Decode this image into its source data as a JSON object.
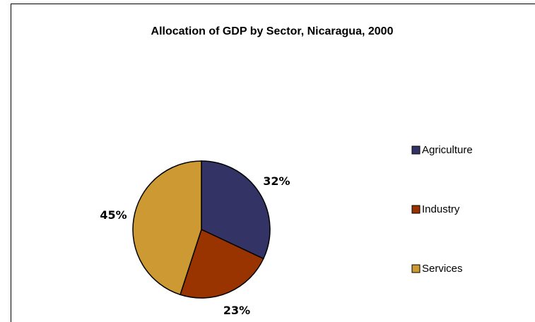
{
  "chart_data": {
    "type": "pie",
    "title": "Allocation of GDP by Sector, Nicaragua, 2000",
    "categories": [
      "Agriculture",
      "Industry",
      "Services"
    ],
    "values": [
      32,
      23,
      45
    ],
    "value_labels": [
      "32%",
      "23%",
      "45%"
    ],
    "colors": [
      "#333366",
      "#993300",
      "#cc9933"
    ],
    "legend": "right"
  }
}
